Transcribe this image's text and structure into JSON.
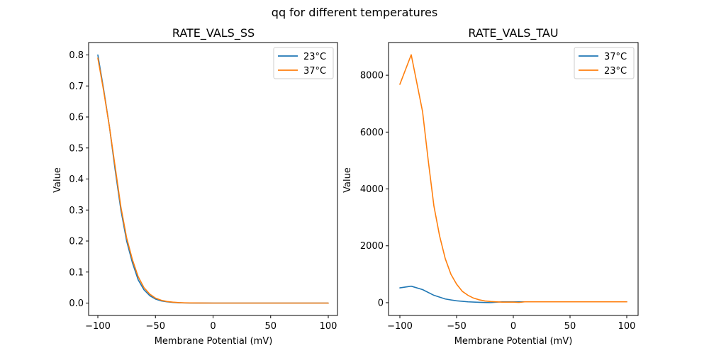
{
  "figure": {
    "suptitle": "qq for different temperatures"
  },
  "colors": {
    "blue": "#1f77b4",
    "orange": "#ff7f0e"
  },
  "chart_data": [
    {
      "type": "line",
      "title": "RATE_VALS_SS",
      "xlabel": "Membrane Potential (mV)",
      "ylabel": "Value",
      "xlim": [
        -108,
        108
      ],
      "ylim": [
        -0.04,
        0.84
      ],
      "xticks": [
        -100,
        -50,
        0,
        50,
        100
      ],
      "xtick_labels": [
        "−100",
        "−50",
        "0",
        "50",
        "100"
      ],
      "yticks": [
        0.0,
        0.1,
        0.2,
        0.3,
        0.4,
        0.5,
        0.6,
        0.7,
        0.8
      ],
      "ytick_labels": [
        "0.0",
        "0.1",
        "0.2",
        "0.3",
        "0.4",
        "0.5",
        "0.6",
        "0.7",
        "0.8"
      ],
      "legend": "top-right",
      "series": [
        {
          "name": "23°C",
          "color": "#1f77b4",
          "x": [
            -100,
            -95,
            -90,
            -85,
            -80,
            -75,
            -70,
            -65,
            -60,
            -55,
            -50,
            -45,
            -40,
            -35,
            -30,
            -25,
            -20,
            -10,
            0,
            25,
            50,
            75,
            100
          ],
          "y": [
            0.8,
            0.69,
            0.57,
            0.43,
            0.3,
            0.2,
            0.13,
            0.075,
            0.043,
            0.024,
            0.013,
            0.007,
            0.004,
            0.002,
            0.001,
            0.0005,
            0.0002,
            0.0001,
            0,
            0,
            0,
            0,
            0
          ]
        },
        {
          "name": "37°C",
          "color": "#ff7f0e",
          "x": [
            -100,
            -95,
            -90,
            -85,
            -80,
            -75,
            -70,
            -65,
            -60,
            -55,
            -50,
            -45,
            -40,
            -35,
            -30,
            -25,
            -20,
            -10,
            0,
            25,
            50,
            75,
            100
          ],
          "y": [
            0.79,
            0.685,
            0.57,
            0.44,
            0.31,
            0.21,
            0.14,
            0.085,
            0.05,
            0.029,
            0.016,
            0.009,
            0.005,
            0.003,
            0.0015,
            0.0008,
            0.0004,
            0.0001,
            0,
            0,
            0,
            0,
            0
          ]
        }
      ]
    },
    {
      "type": "line",
      "title": "RATE_VALS_TAU",
      "xlabel": "Membrane Potential (mV)",
      "ylabel": "Value",
      "xlim": [
        -110,
        110
      ],
      "ylim": [
        -450,
        9150
      ],
      "xticks": [
        -100,
        -50,
        0,
        50,
        100
      ],
      "xtick_labels": [
        "−100",
        "−50",
        "0",
        "50",
        "100"
      ],
      "yticks": [
        0,
        2000,
        4000,
        6000,
        8000
      ],
      "ytick_labels": [
        "0",
        "2000",
        "4000",
        "6000",
        "8000"
      ],
      "legend": "top-right",
      "series": [
        {
          "name": "37°C",
          "color": "#1f77b4",
          "x": [
            -100,
            -90,
            -80,
            -70,
            -60,
            -50,
            -40,
            -30,
            -25,
            -20,
            -10,
            0,
            10,
            25,
            50,
            75,
            100
          ],
          "y": [
            520,
            580,
            460,
            260,
            130,
            65,
            30,
            12,
            6,
            2,
            30,
            30,
            30,
            30,
            30,
            30,
            30
          ]
        },
        {
          "name": "23°C",
          "color": "#ff7f0e",
          "x": [
            -100,
            -90,
            -80,
            -75,
            -70,
            -65,
            -60,
            -55,
            -50,
            -45,
            -40,
            -35,
            -30,
            -25,
            -20,
            -10,
            0,
            5,
            10,
            25,
            50,
            75,
            100
          ],
          "y": [
            7680,
            8720,
            6720,
            5000,
            3400,
            2350,
            1550,
            1000,
            650,
            400,
            260,
            160,
            100,
            60,
            40,
            20,
            20,
            8,
            30,
            30,
            30,
            30,
            30
          ]
        }
      ]
    }
  ]
}
